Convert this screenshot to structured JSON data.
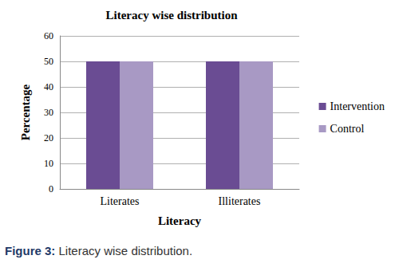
{
  "chart_data": {
    "type": "bar",
    "title": "Literacy wise distribution",
    "x_label": "Literacy",
    "y_label": "Percentage",
    "categories": [
      "Literates",
      "Illiterates"
    ],
    "series": [
      {
        "name": "Intervention",
        "color": "#6a4c93",
        "values": [
          50,
          50
        ]
      },
      {
        "name": "Control",
        "color": "#a899c4",
        "values": [
          50,
          50
        ]
      }
    ],
    "ylim": [
      0,
      60
    ],
    "yticks": [
      0,
      10,
      20,
      30,
      40,
      50,
      60
    ],
    "grid": true,
    "legend": "right",
    "caption": "Figure 3: Literacy wise distribution."
  }
}
